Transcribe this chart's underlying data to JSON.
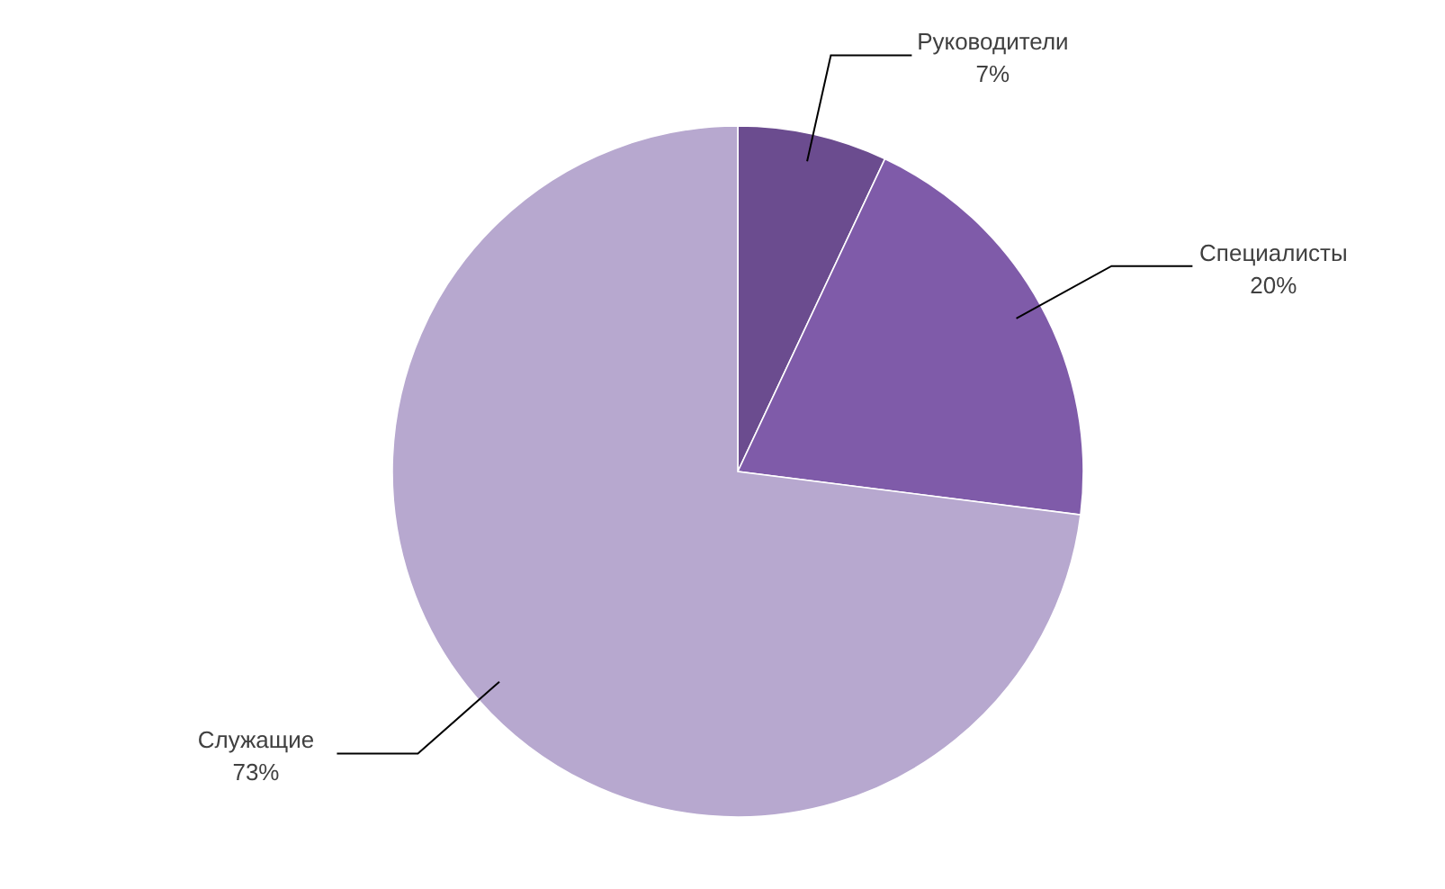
{
  "chart_data": {
    "type": "pie",
    "categories": [
      "Руководители",
      "Специалисты",
      "Служащие"
    ],
    "values": [
      7,
      20,
      73
    ],
    "value_labels": [
      "7%",
      "20%",
      "73%"
    ],
    "colors": [
      "#6b4c8f",
      "#7f5ba9",
      "#b7a8cf"
    ]
  }
}
